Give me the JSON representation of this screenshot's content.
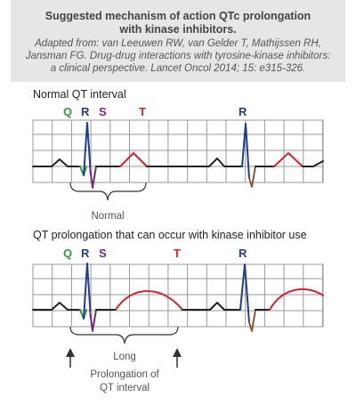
{
  "header": {
    "title_line1": "Suggested mechanism of action QTc prolongation",
    "title_line2": "with kinase inhibitors.",
    "citation_line1": "Adapted from: van Leeuwen RW, van Gelder T, Mathijssen RH,",
    "citation_line2": "Jansman FG. Drug-drug interactions with tyrosine-kinase inhibitors:",
    "citation_line3": "a clinical perspective. Lancet Oncol 2014; 15: e315-326."
  },
  "normal": {
    "title": "Normal QT interval",
    "labels": {
      "q": "Q",
      "r": "R",
      "s": "S",
      "t": "T",
      "r2": "R"
    },
    "bracket_label": "Normal"
  },
  "prolonged": {
    "title": "QT prolongation that can occur with kinase inhibitor use",
    "labels": {
      "q": "Q",
      "r": "R",
      "s": "S",
      "t": "T",
      "r2": "R"
    },
    "bracket_label": "Long",
    "caption_line1": "Prolongation of",
    "caption_line2": "QT interval"
  },
  "colors": {
    "q": "#2e9e3a",
    "r": "#1f3f8c",
    "s": "#7a2a78",
    "t": "#d8232a",
    "s_after": "#8a5a2a",
    "baseline": "#222222",
    "grid": "#999999"
  }
}
